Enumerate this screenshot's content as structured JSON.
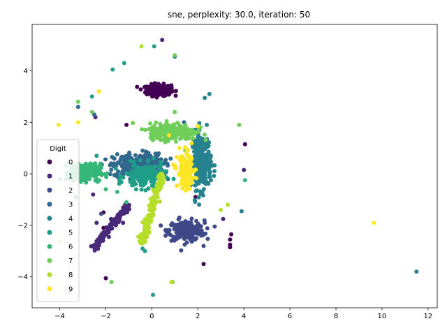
{
  "chart_data": {
    "type": "scatter",
    "title": "sne, perplexity: 30.0, iteration: 50",
    "xlim": [
      -5.2,
      12.4
    ],
    "ylim": [
      -5.2,
      5.8
    ],
    "xticks": [
      -4,
      -2,
      0,
      2,
      4,
      6,
      8,
      10,
      12
    ],
    "yticks": [
      -4,
      -2,
      0,
      2,
      4
    ],
    "grid": false,
    "legend": {
      "title": "Digit",
      "placement": "lower-left"
    },
    "series": [
      {
        "name": "0",
        "color": "#440154",
        "cluster": {
          "center": [
            0.3,
            3.25
          ],
          "spread": [
            0.45,
            0.18
          ],
          "count": 260
        },
        "points": [
          [
            -1.1,
            1.9
          ],
          [
            -2.1,
            -2.1
          ],
          [
            -2.1,
            -1.5
          ],
          [
            -2.0,
            -4.05
          ],
          [
            2.25,
            -3.5
          ],
          [
            3.45,
            -2.35
          ],
          [
            3.4,
            -2.55
          ],
          [
            3.4,
            -2.75
          ],
          [
            4.05,
            1.15
          ],
          [
            1.9,
            -0.9
          ],
          [
            3.4,
            -2.85
          ]
        ]
      },
      {
        "name": "1",
        "color": "#482878",
        "cluster": {
          "line": [
            [
              -2.55,
              -2.9
            ],
            [
              -1.0,
              -1.2
            ]
          ],
          "width": 0.12,
          "count": 160
        },
        "points": [
          [
            -3.3,
            0.1
          ],
          [
            -1.25,
            -1.9
          ],
          [
            0.45,
            5.2
          ],
          [
            0.0,
            0.1
          ],
          [
            4.0,
            0.15
          ],
          [
            3.1,
            -1.75
          ],
          [
            -2.45,
            2.2
          ],
          [
            -2.55,
            -0.8
          ],
          [
            -2.4,
            -1.9
          ]
        ]
      },
      {
        "name": "2",
        "color": "#3e4989",
        "cluster": {
          "center": [
            1.5,
            -2.2
          ],
          "spread": [
            0.65,
            0.32
          ],
          "count": 220
        },
        "points": [
          [
            -2.2,
            -1.55
          ],
          [
            2.3,
            -1.9
          ],
          [
            2.25,
            -2.8
          ],
          [
            1.2,
            -1.7
          ],
          [
            0.6,
            -2.4
          ]
        ]
      },
      {
        "name": "3",
        "color": "#31688e",
        "cluster": {
          "center": [
            -0.6,
            0.3
          ],
          "spread": [
            0.9,
            0.4
          ],
          "count": 320
        },
        "points": [
          [
            -3.2,
            2.6
          ],
          [
            -2.5,
            2.3
          ],
          [
            -1.5,
            0.0
          ],
          [
            1.4,
            2.0
          ],
          [
            -0.4,
            0.9
          ],
          [
            0.7,
            -0.2
          ]
        ]
      },
      {
        "name": "4",
        "color": "#26828e",
        "cluster": {
          "center": [
            2.15,
            0.5
          ],
          "spread": [
            0.35,
            0.9
          ],
          "count": 260
        },
        "points": [
          [
            2.3,
            2.95
          ],
          [
            2.5,
            3.1
          ],
          [
            3.9,
            -1.45
          ],
          [
            11.5,
            -3.8
          ],
          [
            -3.3,
            -0.9
          ],
          [
            -0.15,
            0.45
          ],
          [
            1.0,
            4.55
          ]
        ]
      },
      {
        "name": "5",
        "color": "#1f9e89",
        "cluster": {
          "center": [
            -0.3,
            -0.1
          ],
          "spread": [
            0.7,
            0.4
          ],
          "count": 160
        },
        "points": [
          [
            -1.2,
            4.3
          ],
          [
            -2.6,
            3.0
          ],
          [
            -1.7,
            4.05
          ],
          [
            -0.4,
            -2.9
          ],
          [
            -0.3,
            -3.0
          ],
          [
            0.1,
            4.95
          ],
          [
            0.05,
            -4.7
          ],
          [
            -2.4,
            0.7
          ]
        ]
      },
      {
        "name": "6",
        "color": "#35b779",
        "cluster": {
          "center": [
            -2.9,
            0.05
          ],
          "spread": [
            0.55,
            0.28
          ],
          "count": 230
        },
        "points": [
          [
            4.05,
            -0.25
          ],
          [
            -2.0,
            -0.6
          ],
          [
            -1.5,
            -0.7
          ],
          [
            -1.1,
            -1.1
          ]
        ]
      },
      {
        "name": "7",
        "color": "#6ece58",
        "cluster": {
          "center": [
            0.9,
            1.65
          ],
          "spread": [
            0.85,
            0.26
          ],
          "count": 260
        },
        "points": [
          [
            -3.2,
            2.8
          ],
          [
            3.8,
            1.9
          ],
          [
            -1.75,
            -4.2
          ],
          [
            -2.6,
            2.4
          ],
          [
            1.0,
            4.6
          ],
          [
            1.0,
            2.4
          ],
          [
            0.9,
            -4.2
          ],
          [
            1.45,
            0.9
          ]
        ]
      },
      {
        "name": "8",
        "color": "#b5de2b",
        "cluster": {
          "line": [
            [
              -0.45,
              -2.7
            ],
            [
              0.45,
              0.0
            ]
          ],
          "width": 0.15,
          "count": 170
        },
        "points": [
          [
            -0.45,
            4.95
          ],
          [
            3.0,
            -1.4
          ],
          [
            3.3,
            -1.2
          ],
          [
            -4.0,
            -2.6
          ],
          [
            0.85,
            -4.2
          ],
          [
            1.0,
            0.3
          ]
        ]
      },
      {
        "name": "9",
        "color": "#fde725",
        "cluster": {
          "center": [
            1.5,
            0.1
          ],
          "spread": [
            0.32,
            0.55
          ],
          "count": 140
        },
        "points": [
          [
            -4.05,
            1.9
          ],
          [
            -3.2,
            2.0
          ],
          [
            -2.3,
            3.2
          ],
          [
            9.65,
            -1.9
          ],
          [
            2.0,
            1.85
          ],
          [
            1.2,
            1.0
          ],
          [
            0.75,
            1.5
          ]
        ]
      }
    ]
  }
}
